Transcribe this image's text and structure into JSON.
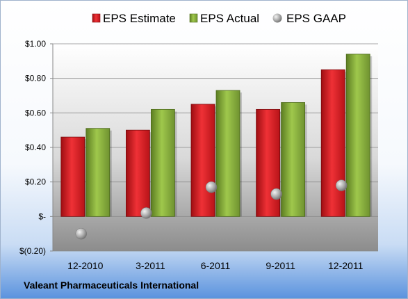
{
  "company": "Valeant Pharmaceuticals International",
  "chart_data": {
    "type": "bar",
    "title": "",
    "xlabel": "",
    "ylabel": "",
    "categories": [
      "12-2010",
      "3-2011",
      "6-2011",
      "9-2011",
      "12-2011"
    ],
    "series": [
      {
        "name": "EPS Estimate",
        "type": "bar",
        "values": [
          0.46,
          0.5,
          0.65,
          0.62,
          0.85
        ],
        "color": "#e8252a"
      },
      {
        "name": "EPS Actual",
        "type": "bar",
        "values": [
          0.51,
          0.62,
          0.73,
          0.66,
          0.94
        ],
        "color": "#8fb83f"
      },
      {
        "name": "EPS GAAP",
        "type": "scatter",
        "values": [
          -0.1,
          0.02,
          0.17,
          0.13,
          0.18
        ],
        "color": "#a8a8a8"
      }
    ],
    "ylim": [
      -0.2,
      1.0
    ],
    "yticks": [
      -0.2,
      0.0,
      0.2,
      0.4,
      0.6,
      0.8,
      1.0
    ],
    "ytick_labels": [
      "$(0.20)",
      "$-",
      "$0.20",
      "$0.40",
      "$0.60",
      "$0.80",
      "$1.00"
    ],
    "grid": true,
    "legend": "top"
  }
}
